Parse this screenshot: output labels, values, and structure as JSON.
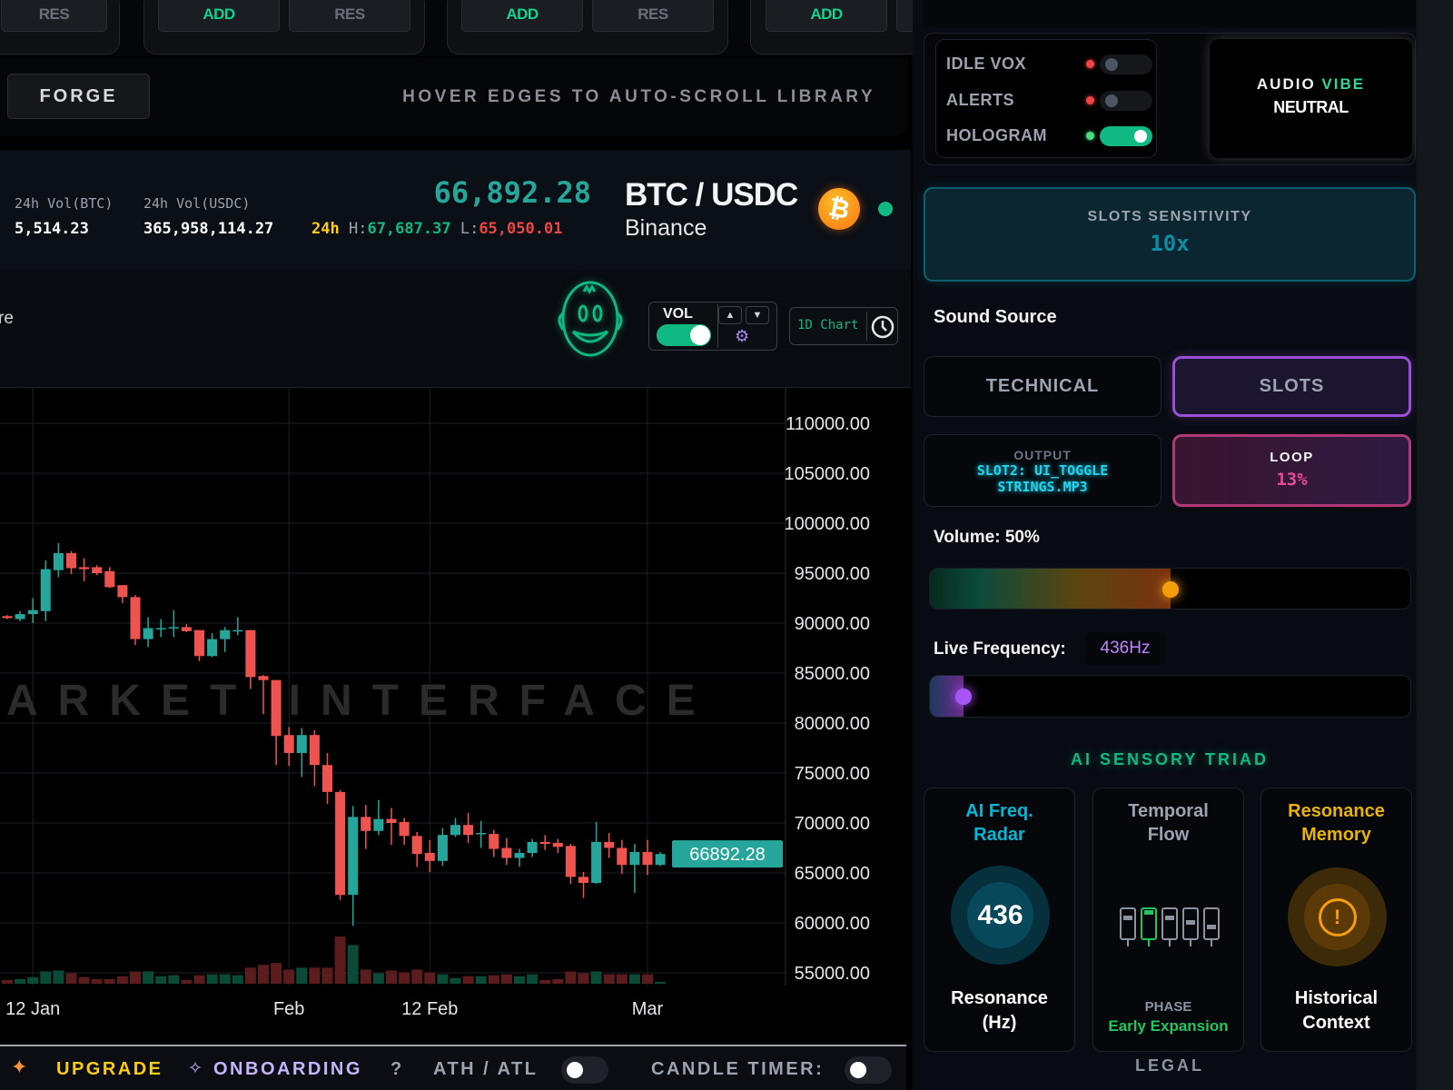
{
  "slots_bar": {
    "groups": [
      {
        "buttons": [
          "RES"
        ]
      },
      {
        "buttons": [
          "ADD",
          "RES"
        ]
      },
      {
        "buttons": [
          "ADD",
          "RES"
        ]
      },
      {
        "buttons": [
          "ADD"
        ]
      }
    ]
  },
  "forge": {
    "label": "FORGE",
    "hint": "HOVER EDGES TO AUTO-SCROLL LIBRARY"
  },
  "ticker": {
    "vol_btc_label": "24h Vol(BTC)",
    "vol_btc": "5,514.23",
    "vol_usdc_label": "24h Vol(USDC)",
    "vol_usdc": "365,958,114.27",
    "price": "66,892.28",
    "range_label": "24h",
    "high_label": "H:",
    "high": "67,687.37",
    "low_label": "L:",
    "low": "65,050.01",
    "pair": "BTC / USDC",
    "exchange": "Binance",
    "coin_icon": "bitcoin-icon",
    "status_color": "#10b981"
  },
  "toolbar": {
    "cut_text": "re",
    "vol_label": "VOL",
    "vol_on": true,
    "interval_label": "1D Chart"
  },
  "chart_data": {
    "type": "candlestick",
    "watermark": "MARKET INTERFACE",
    "ylim": [
      55000,
      110000
    ],
    "yticks": [
      110000,
      105000,
      100000,
      95000,
      90000,
      85000,
      80000,
      75000,
      70000,
      65000,
      60000,
      55000
    ],
    "ytick_labels": [
      "110000.00",
      "105000.00",
      "100000.00",
      "95000.00",
      "90000.00",
      "85000.00",
      "80000.00",
      "75000.00",
      "70000.00",
      "65000.00",
      "60000.00",
      "55000.00"
    ],
    "xticks": [
      {
        "label": "12 Jan",
        "date": "Jan 12"
      },
      {
        "label": "Feb",
        "date": "Feb 1"
      },
      {
        "label": "12 Feb",
        "date": "Feb 12"
      },
      {
        "label": "Mar",
        "date": "Mar 1"
      }
    ],
    "last_price_label": "66892.28",
    "up_color": "#26a69a",
    "down_color": "#ef5350",
    "grid": true,
    "candles": [
      {
        "d": "Jan 10",
        "o": 90700,
        "h": 90800,
        "l": 90400,
        "c": 90500,
        "v": 8
      },
      {
        "d": "Jan 11",
        "o": 90400,
        "h": 91200,
        "l": 90200,
        "c": 90900,
        "v": 10
      },
      {
        "d": "Jan 12",
        "o": 90900,
        "h": 92500,
        "l": 90000,
        "c": 91300,
        "v": 14
      },
      {
        "d": "Jan 13",
        "o": 91200,
        "h": 96300,
        "l": 90200,
        "c": 95400,
        "v": 26
      },
      {
        "d": "Jan 14",
        "o": 95300,
        "h": 98000,
        "l": 94600,
        "c": 97000,
        "v": 28
      },
      {
        "d": "Jan 15",
        "o": 97000,
        "h": 97200,
        "l": 94900,
        "c": 95500,
        "v": 22
      },
      {
        "d": "Jan 16",
        "o": 95600,
        "h": 96500,
        "l": 94200,
        "c": 95400,
        "v": 14
      },
      {
        "d": "Jan 17",
        "o": 95600,
        "h": 95800,
        "l": 94800,
        "c": 95000,
        "v": 10
      },
      {
        "d": "Jan 18",
        "o": 95200,
        "h": 95600,
        "l": 93500,
        "c": 93600,
        "v": 10
      },
      {
        "d": "Jan 19",
        "o": 93800,
        "h": 93800,
        "l": 92000,
        "c": 92600,
        "v": 16
      },
      {
        "d": "Jan 20",
        "o": 92600,
        "h": 92800,
        "l": 87800,
        "c": 88400,
        "v": 26
      },
      {
        "d": "Jan 21",
        "o": 88400,
        "h": 90600,
        "l": 87600,
        "c": 89500,
        "v": 26
      },
      {
        "d": "Jan 22",
        "o": 89500,
        "h": 90400,
        "l": 88600,
        "c": 89500,
        "v": 16
      },
      {
        "d": "Jan 23",
        "o": 89500,
        "h": 91300,
        "l": 88600,
        "c": 89600,
        "v": 18
      },
      {
        "d": "Jan 24",
        "o": 89600,
        "h": 89900,
        "l": 89100,
        "c": 89200,
        "v": 8
      },
      {
        "d": "Jan 25",
        "o": 89300,
        "h": 89300,
        "l": 86200,
        "c": 86700,
        "v": 18
      },
      {
        "d": "Jan 26",
        "o": 86700,
        "h": 89000,
        "l": 86600,
        "c": 88400,
        "v": 20
      },
      {
        "d": "Jan 27",
        "o": 88400,
        "h": 89600,
        "l": 87100,
        "c": 89300,
        "v": 20
      },
      {
        "d": "Jan 28",
        "o": 89200,
        "h": 90600,
        "l": 88800,
        "c": 89300,
        "v": 18
      },
      {
        "d": "Jan 29",
        "o": 89300,
        "h": 89300,
        "l": 83400,
        "c": 84600,
        "v": 34
      },
      {
        "d": "Jan 30",
        "o": 84700,
        "h": 84800,
        "l": 80900,
        "c": 84300,
        "v": 40
      },
      {
        "d": "Jan 31",
        "o": 84300,
        "h": 84300,
        "l": 75800,
        "c": 78700,
        "v": 44
      },
      {
        "d": "Feb 1",
        "o": 78800,
        "h": 79600,
        "l": 75700,
        "c": 77000,
        "v": 30
      },
      {
        "d": "Feb 2",
        "o": 77000,
        "h": 79500,
        "l": 74600,
        "c": 78800,
        "v": 34
      },
      {
        "d": "Feb 3",
        "o": 78800,
        "h": 79300,
        "l": 73700,
        "c": 75800,
        "v": 34
      },
      {
        "d": "Feb 4",
        "o": 75800,
        "h": 77000,
        "l": 71900,
        "c": 73100,
        "v": 34
      },
      {
        "d": "Feb 5",
        "o": 73100,
        "h": 73300,
        "l": 62300,
        "c": 62800,
        "v": 100
      },
      {
        "d": "Feb 6",
        "o": 62800,
        "h": 71700,
        "l": 59700,
        "c": 70600,
        "v": 82
      },
      {
        "d": "Feb 7",
        "o": 70600,
        "h": 71800,
        "l": 67400,
        "c": 69200,
        "v": 30
      },
      {
        "d": "Feb 8",
        "o": 69200,
        "h": 72300,
        "l": 68800,
        "c": 70400,
        "v": 22
      },
      {
        "d": "Feb 9",
        "o": 70400,
        "h": 71500,
        "l": 67800,
        "c": 70000,
        "v": 28
      },
      {
        "d": "Feb 10",
        "o": 70100,
        "h": 70500,
        "l": 67800,
        "c": 68700,
        "v": 24
      },
      {
        "d": "Feb 11",
        "o": 68700,
        "h": 69100,
        "l": 65600,
        "c": 66900,
        "v": 30
      },
      {
        "d": "Feb 12",
        "o": 67000,
        "h": 68300,
        "l": 65100,
        "c": 66200,
        "v": 24
      },
      {
        "d": "Feb 13",
        "o": 66200,
        "h": 69500,
        "l": 65700,
        "c": 68800,
        "v": 20
      },
      {
        "d": "Feb 14",
        "o": 68800,
        "h": 70500,
        "l": 68600,
        "c": 69800,
        "v": 12
      },
      {
        "d": "Feb 15",
        "o": 69800,
        "h": 71000,
        "l": 68000,
        "c": 68800,
        "v": 16
      },
      {
        "d": "Feb 16",
        "o": 68900,
        "h": 70200,
        "l": 67500,
        "c": 69000,
        "v": 16
      },
      {
        "d": "Feb 17",
        "o": 68900,
        "h": 69300,
        "l": 66600,
        "c": 67400,
        "v": 18
      },
      {
        "d": "Feb 18",
        "o": 67500,
        "h": 68500,
        "l": 65800,
        "c": 66500,
        "v": 20
      },
      {
        "d": "Feb 19",
        "o": 66500,
        "h": 67400,
        "l": 65600,
        "c": 67000,
        "v": 16
      },
      {
        "d": "Feb 20",
        "o": 67000,
        "h": 68400,
        "l": 66600,
        "c": 68100,
        "v": 20
      },
      {
        "d": "Feb 21",
        "o": 68100,
        "h": 68800,
        "l": 67300,
        "c": 67900,
        "v": 8
      },
      {
        "d": "Feb 22",
        "o": 68000,
        "h": 68400,
        "l": 67000,
        "c": 67600,
        "v": 10
      },
      {
        "d": "Feb 23",
        "o": 67700,
        "h": 67900,
        "l": 63900,
        "c": 64600,
        "v": 26
      },
      {
        "d": "Feb 24",
        "o": 64600,
        "h": 65100,
        "l": 62500,
        "c": 64000,
        "v": 22
      },
      {
        "d": "Feb 25",
        "o": 64000,
        "h": 70100,
        "l": 63900,
        "c": 68100,
        "v": 26
      },
      {
        "d": "Feb 26",
        "o": 68100,
        "h": 69000,
        "l": 66500,
        "c": 67500,
        "v": 20
      },
      {
        "d": "Feb 27",
        "o": 67500,
        "h": 68300,
        "l": 64900,
        "c": 65800,
        "v": 20
      },
      {
        "d": "Feb 28",
        "o": 65800,
        "h": 67900,
        "l": 63000,
        "c": 67100,
        "v": 20
      },
      {
        "d": "Mar 1",
        "o": 67100,
        "h": 68300,
        "l": 64800,
        "c": 65800,
        "v": 20
      },
      {
        "d": "Mar 2",
        "o": 65800,
        "h": 67100,
        "l": 65700,
        "c": 66892.28,
        "v": 4
      }
    ]
  },
  "bottom_bar": {
    "upgrade": "UPGRADE",
    "onboarding": "ONBOARDING",
    "help": "?",
    "ath_atl": "ATH / ATL",
    "ath_atl_on": false,
    "candle_timer": "CANDLE TIMER:",
    "candle_timer_on": false
  },
  "right_panel": {
    "toggles": [
      {
        "label": "IDLE VOX",
        "on": false,
        "led": "#ef4444"
      },
      {
        "label": "ALERTS",
        "on": false,
        "led": "#ef4444"
      },
      {
        "label": "HOLOGRAM",
        "on": true,
        "led": "#4ade80"
      }
    ],
    "audio_vibe": {
      "word1": "AUDIO",
      "word2": "VIBE",
      "value": "NEUTRAL"
    },
    "sensitivity": {
      "label": "SLOTS SENSITIVITY",
      "value": "10x"
    },
    "sound_source": {
      "label": "Sound Source",
      "options": [
        "TECHNICAL",
        "SLOTS"
      ],
      "selected": "SLOTS"
    },
    "output": {
      "label": "OUTPUT",
      "line1": "SLOT2: UI_TOGGLE",
      "line2": "STRINGS.MP3"
    },
    "loop": {
      "label": "LOOP",
      "value": "13%"
    },
    "volume": {
      "label": "Volume: 50%",
      "percent": 50
    },
    "frequency": {
      "label": "Live Frequency:",
      "value": "436Hz",
      "fill_percent": 7
    },
    "triad": {
      "title": "AI SENSORY TRIAD",
      "cards": [
        {
          "title1": "AI Freq.",
          "title2": "Radar",
          "value": "436",
          "bottom1": "Resonance",
          "bottom2": "(Hz)",
          "color": "#06b6d4"
        },
        {
          "title1": "Temporal",
          "title2": "Flow",
          "phase_label": "PHASE",
          "phase": "Early Expansion",
          "color": "#9ca3af"
        },
        {
          "title1": "Resonance",
          "title2": "Memory",
          "bottom1": "Historical",
          "bottom2": "Context",
          "color": "#eab308"
        }
      ]
    },
    "legal": "LEGAL"
  }
}
